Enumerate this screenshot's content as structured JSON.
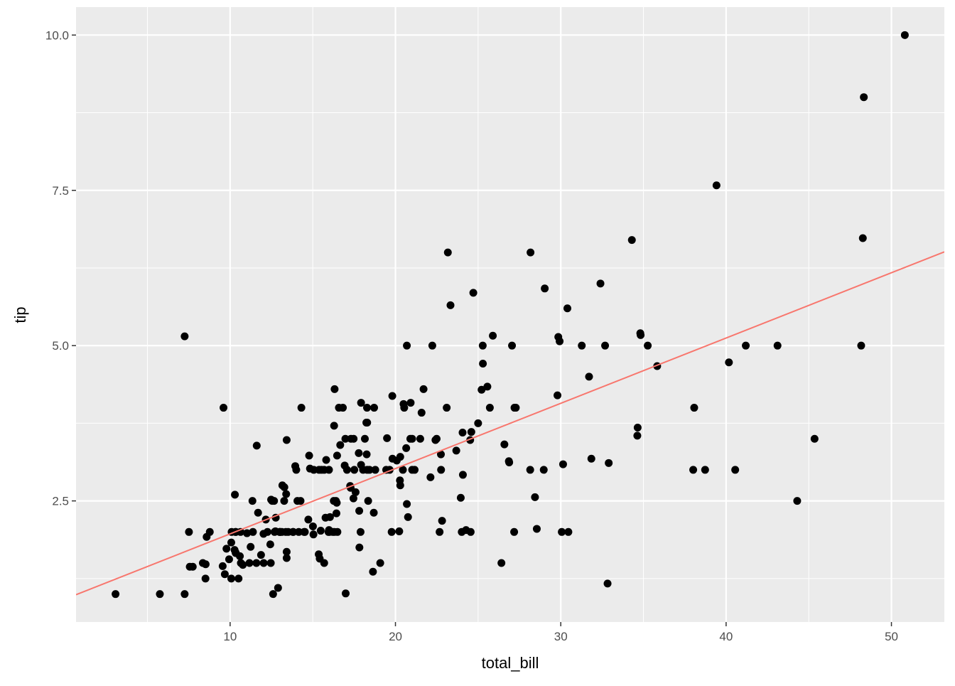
{
  "chart_data": {
    "type": "scatter",
    "x_label": "total_bill",
    "y_label": "tip",
    "xlim": [
      0.68,
      53.2
    ],
    "ylim": [
      0.55,
      10.45
    ],
    "xticks": [
      10,
      20,
      30,
      40,
      50
    ],
    "yticks": [
      2.5,
      {
        "value": 5,
        "label": "5.0"
      },
      7.5,
      {
        "value": 10,
        "label": "10.0"
      }
    ],
    "xminor": [
      5,
      15,
      25,
      35,
      45
    ],
    "yminor": [
      1.25,
      3.75,
      6.25,
      8.75
    ],
    "grid": true,
    "color": "#000000",
    "x": [
      16.99,
      10.34,
      21.01,
      23.68,
      24.59,
      25.29,
      8.77,
      26.88,
      15.04,
      14.78,
      10.27,
      35.26,
      15.42,
      18.43,
      14.83,
      21.58,
      10.33,
      16.29,
      16.97,
      20.65,
      17.92,
      20.29,
      15.77,
      39.42,
      19.82,
      17.81,
      13.37,
      12.69,
      21.7,
      19.65,
      9.55,
      18.35,
      15.06,
      20.69,
      17.78,
      24.06,
      16.31,
      16.93,
      18.69,
      31.27,
      16.04,
      17.46,
      13.94,
      9.68,
      30.4,
      18.29,
      22.23,
      32.4,
      28.55,
      18.04,
      12.54,
      10.29,
      34.81,
      9.94,
      25.56,
      19.49,
      38.01,
      26.41,
      11.24,
      48.27,
      20.29,
      13.81,
      11.02,
      18.29,
      17.59,
      20.08,
      16.45,
      3.07,
      20.23,
      15.01,
      12.02,
      17.07,
      26.86,
      25.28,
      14.73,
      10.51,
      17.92,
      27.2,
      22.76,
      17.29,
      19.44,
      16.66,
      10.07,
      32.68,
      15.98,
      34.83,
      13.03,
      18.28,
      24.71,
      21.16,
      28.97,
      22.49,
      5.75,
      16.32,
      22.75,
      40.17,
      27.28,
      12.03,
      21.01,
      12.46,
      11.35,
      15.38,
      44.3,
      22.42,
      20.92,
      15.36,
      20.49,
      25.21,
      18.24,
      14.31,
      14.0,
      7.25,
      38.07,
      23.95,
      25.71,
      17.31,
      29.93,
      10.65,
      12.43,
      24.08,
      11.69,
      13.42,
      14.26,
      15.95,
      12.48,
      29.8,
      8.52,
      14.52,
      11.38,
      22.82,
      19.08,
      20.27,
      11.17,
      12.26,
      18.26,
      8.51,
      10.33,
      14.15,
      16.0,
      13.16,
      17.47,
      34.3,
      41.19,
      27.05,
      16.43,
      8.35,
      18.64,
      11.87,
      9.78,
      7.51,
      14.07,
      13.13,
      17.26,
      24.55,
      19.77,
      29.85,
      48.17,
      25.0,
      13.39,
      16.49,
      21.5,
      12.66,
      16.21,
      13.81,
      17.51,
      24.52,
      20.76,
      31.71,
      10.59,
      10.63,
      50.81,
      15.81,
      7.25,
      31.85,
      16.82,
      32.9,
      17.89,
      14.48,
      9.6,
      34.63,
      34.65,
      23.33,
      45.35,
      23.17,
      40.55,
      20.69,
      20.9,
      30.46,
      18.15,
      23.1,
      15.69,
      19.81,
      28.44,
      15.48,
      16.58,
      7.56,
      10.34,
      43.11,
      13.0,
      13.51,
      18.71,
      12.74,
      13.0,
      16.4,
      20.53,
      16.47,
      26.59,
      38.73,
      24.27,
      12.76,
      30.06,
      25.89,
      48.33,
      13.27,
      28.17,
      12.9,
      28.15,
      11.59,
      7.74,
      30.14,
      12.16,
      13.42,
      8.58,
      15.98,
      13.42,
      16.27,
      10.09,
      20.45,
      13.28,
      22.12,
      24.01,
      15.69,
      11.61,
      10.77,
      15.53,
      10.07,
      12.6,
      32.83,
      35.83,
      29.03,
      27.18,
      22.67,
      17.82,
      18.78
    ],
    "values": [
      1.01,
      1.66,
      3.5,
      3.31,
      3.61,
      4.71,
      2.0,
      3.12,
      1.96,
      3.23,
      1.71,
      5.0,
      1.57,
      3.0,
      3.02,
      3.92,
      1.67,
      3.71,
      3.5,
      3.35,
      4.08,
      2.75,
      2.23,
      7.58,
      3.18,
      2.34,
      2.0,
      2.0,
      4.3,
      3.0,
      1.45,
      2.5,
      3.0,
      2.45,
      3.27,
      3.6,
      2.0,
      3.07,
      2.31,
      5.0,
      2.24,
      2.54,
      3.06,
      1.32,
      5.6,
      3.0,
      5.0,
      6.0,
      2.05,
      3.0,
      2.5,
      2.6,
      5.2,
      1.56,
      4.34,
      3.51,
      3.0,
      1.5,
      1.76,
      6.73,
      3.21,
      2.0,
      1.98,
      3.76,
      2.64,
      3.15,
      2.47,
      1.0,
      2.01,
      2.09,
      1.97,
      3.0,
      3.14,
      5.0,
      2.2,
      1.25,
      3.08,
      4.0,
      3.0,
      2.71,
      3.0,
      3.4,
      1.83,
      5.0,
      2.03,
      5.17,
      2.0,
      4.0,
      5.85,
      3.0,
      3.0,
      3.5,
      1.0,
      4.3,
      3.25,
      4.73,
      4.0,
      1.5,
      3.0,
      1.5,
      2.5,
      3.0,
      2.5,
      3.48,
      4.08,
      1.64,
      4.06,
      4.29,
      3.76,
      4.0,
      3.0,
      1.0,
      4.0,
      2.55,
      4.0,
      3.5,
      5.07,
      1.5,
      1.8,
      2.92,
      2.31,
      1.68,
      2.5,
      2.0,
      2.52,
      4.2,
      1.48,
      2.0,
      2.0,
      2.18,
      1.5,
      2.83,
      1.5,
      2.0,
      3.25,
      1.25,
      2.0,
      2.0,
      2.0,
      2.75,
      3.5,
      6.7,
      5.0,
      5.0,
      2.3,
      1.5,
      1.36,
      1.63,
      1.73,
      2.0,
      2.5,
      2.0,
      2.74,
      2.0,
      2.0,
      5.14,
      5.0,
      3.75,
      2.61,
      2.0,
      3.5,
      2.5,
      2.0,
      2.0,
      3.0,
      3.48,
      2.24,
      4.5,
      1.61,
      2.0,
      10.0,
      3.16,
      5.15,
      3.18,
      4.0,
      3.11,
      2.0,
      2.0,
      4.0,
      3.55,
      3.68,
      5.65,
      3.5,
      6.5,
      3.0,
      5.0,
      3.5,
      2.0,
      3.5,
      4.0,
      1.5,
      4.19,
      2.56,
      2.02,
      4.0,
      1.44,
      2.0,
      5.0,
      2.0,
      2.0,
      4.0,
      2.01,
      2.0,
      2.5,
      4.0,
      3.23,
      3.41,
      3.0,
      2.03,
      2.23,
      2.0,
      5.16,
      9.0,
      2.5,
      6.5,
      1.1,
      3.0,
      1.5,
      1.44,
      3.09,
      2.2,
      3.48,
      1.92,
      3.0,
      1.58,
      2.5,
      2.0,
      3.0,
      2.72,
      2.88,
      2.0,
      3.0,
      3.39,
      1.47,
      3.0,
      1.25,
      1.0,
      1.17,
      4.67,
      5.92,
      2.0,
      2.0,
      1.75,
      3.0
    ],
    "fit": {
      "x": [
        0.68,
        53.2
      ],
      "values": [
        0.99,
        6.51
      ],
      "color": "#F8766D"
    }
  }
}
